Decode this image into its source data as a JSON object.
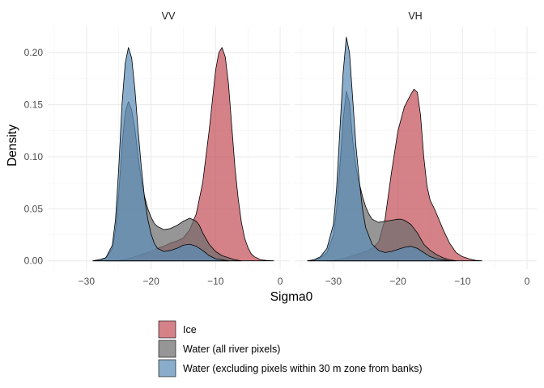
{
  "chart_data": {
    "type": "area",
    "subtype": "density",
    "facets": [
      "VV",
      "VH"
    ],
    "xlabel": "Sigma0",
    "ylabel": "Density",
    "xlim": [
      -36,
      1.5
    ],
    "ylim": [
      -0.008,
      0.225
    ],
    "x_ticks": [
      -30,
      -20,
      -10,
      0
    ],
    "x_tick_labels": [
      "−30",
      "−20",
      "−10",
      "0"
    ],
    "y_ticks": [
      0,
      0.05,
      0.1,
      0.15,
      0.2
    ],
    "y_tick_labels": [
      "0.00",
      "0.05",
      "0.10",
      "0.15",
      "0.20"
    ],
    "grid": true,
    "legend_position": "bottom",
    "series": [
      {
        "name": "Ice",
        "color": "#C4505A",
        "panels": {
          "VV": {
            "x": [
              -27,
              -26,
              -25,
              -24,
              -23,
              -22,
              -21,
              -20,
              -19,
              -18,
              -17,
              -16,
              -15,
              -14,
              -13,
              -12,
              -11,
              -10,
              -9.5,
              -9,
              -8.5,
              -8,
              -7.5,
              -7,
              -6.5,
              -6,
              -5.5,
              -5,
              -4.5,
              -4,
              -3,
              -2,
              -1
            ],
            "y": [
              0,
              0.0002,
              0.0005,
              0.0015,
              0.003,
              0.005,
              0.007,
              0.009,
              0.012,
              0.014,
              0.017,
              0.019,
              0.022,
              0.03,
              0.045,
              0.075,
              0.125,
              0.183,
              0.2,
              0.205,
              0.196,
              0.17,
              0.13,
              0.09,
              0.06,
              0.037,
              0.022,
              0.013,
              0.007,
              0.004,
              0.001,
              0.0003,
              0
            ]
          },
          "VH": {
            "x": [
              -31,
              -30,
              -29,
              -28,
              -27,
              -26,
              -25,
              -24,
              -23,
              -22,
              -21,
              -20,
              -19,
              -18,
              -17.5,
              -17,
              -16.5,
              -16,
              -15.5,
              -15,
              -14.5,
              -14,
              -13,
              -12,
              -11,
              -10,
              -9,
              -8,
              -7
            ],
            "y": [
              0,
              0.0005,
              0.0015,
              0.003,
              0.005,
              0.007,
              0.009,
              0.012,
              0.018,
              0.04,
              0.085,
              0.125,
              0.148,
              0.16,
              0.165,
              0.162,
              0.14,
              0.1,
              0.072,
              0.058,
              0.052,
              0.045,
              0.03,
              0.017,
              0.008,
              0.004,
              0.002,
              0.0005,
              0
            ]
          }
        }
      },
      {
        "name": "Water (all river pixels)",
        "color": "#6E6E6E",
        "panels": {
          "VV": {
            "x": [
              -29,
              -28,
              -27,
              -26,
              -25.5,
              -25,
              -24.5,
              -24,
              -23.5,
              -23,
              -22.5,
              -22,
              -21.5,
              -21,
              -20.5,
              -20,
              -19.5,
              -19,
              -18,
              -17,
              -16,
              -15,
              -14,
              -13,
              -12.5,
              -12,
              -11,
              -10,
              -9,
              -8,
              -7,
              -6
            ],
            "y": [
              0,
              0.001,
              0.003,
              0.012,
              0.03,
              0.065,
              0.11,
              0.143,
              0.153,
              0.145,
              0.127,
              0.1,
              0.078,
              0.062,
              0.05,
              0.042,
              0.036,
              0.033,
              0.03,
              0.031,
              0.034,
              0.038,
              0.041,
              0.038,
              0.034,
              0.027,
              0.016,
              0.009,
              0.005,
              0.003,
              0.001,
              0
            ]
          },
          "VH": {
            "x": [
              -34,
              -33,
              -32,
              -31,
              -30,
              -29.5,
              -29,
              -28.5,
              -28,
              -27.5,
              -27,
              -26.5,
              -26,
              -25.5,
              -25,
              -24.5,
              -24,
              -23,
              -22,
              -21,
              -20,
              -19.5,
              -19,
              -18,
              -17,
              -16,
              -15,
              -14,
              -13,
              -12,
              -11
            ],
            "y": [
              0,
              0.001,
              0.003,
              0.008,
              0.025,
              0.05,
              0.09,
              0.135,
              0.163,
              0.152,
              0.115,
              0.09,
              0.075,
              0.062,
              0.052,
              0.045,
              0.04,
              0.037,
              0.038,
              0.039,
              0.04,
              0.04,
              0.039,
              0.035,
              0.027,
              0.016,
              0.01,
              0.006,
              0.003,
              0.001,
              0
            ]
          }
        }
      },
      {
        "name": "Water (excluding pixels within 30 m zone from banks)",
        "color": "#5B8DB5",
        "panels": {
          "VV": {
            "x": [
              -29,
              -28,
              -27,
              -26,
              -25.5,
              -25,
              -24.5,
              -24,
              -23.5,
              -23,
              -22.5,
              -22,
              -21.5,
              -21,
              -20.5,
              -20,
              -19.5,
              -19,
              -18,
              -17,
              -16,
              -15,
              -14,
              -13,
              -12,
              -11,
              -10,
              -9,
              -8
            ],
            "y": [
              0,
              0.001,
              0.003,
              0.015,
              0.04,
              0.09,
              0.15,
              0.19,
              0.205,
              0.195,
              0.165,
              0.125,
              0.09,
              0.06,
              0.04,
              0.026,
              0.017,
              0.012,
              0.009,
              0.01,
              0.012,
              0.015,
              0.016,
              0.014,
              0.01,
              0.005,
              0.002,
              0.001,
              0
            ]
          },
          "VH": {
            "x": [
              -34,
              -33,
              -32,
              -31,
              -30,
              -29.5,
              -29,
              -28.5,
              -28,
              -27.5,
              -27,
              -26.5,
              -26,
              -25.5,
              -25,
              -24,
              -23,
              -22,
              -21,
              -20,
              -19,
              -18,
              -17,
              -16,
              -15,
              -14,
              -13,
              -12
            ],
            "y": [
              0,
              0.001,
              0.004,
              0.012,
              0.035,
              0.07,
              0.125,
              0.18,
              0.215,
              0.2,
              0.155,
              0.11,
              0.078,
              0.05,
              0.032,
              0.016,
              0.01,
              0.008,
              0.009,
              0.011,
              0.013,
              0.014,
              0.012,
              0.008,
              0.004,
              0.002,
              0.001,
              0
            ]
          }
        }
      }
    ]
  }
}
